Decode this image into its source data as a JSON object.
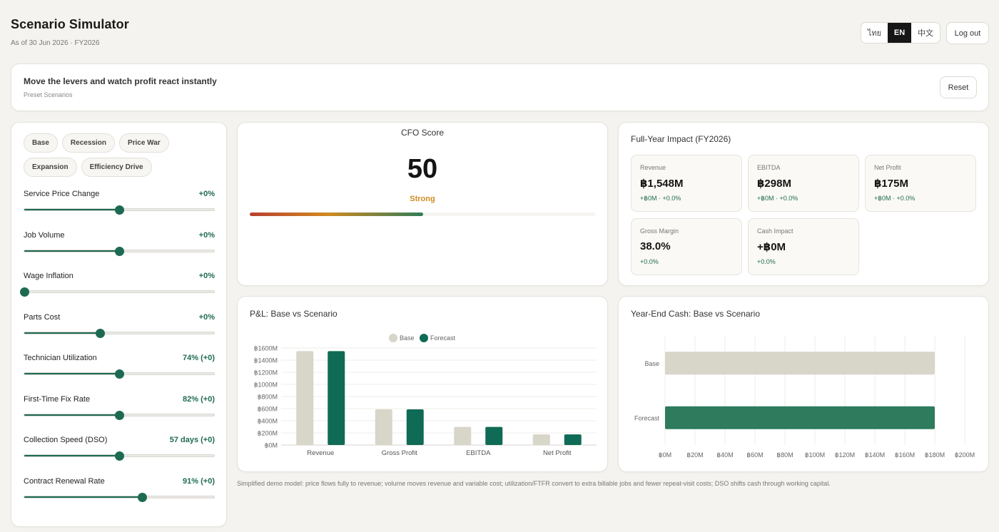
{
  "header": {
    "title": "Scenario Simulator",
    "subtitle": "As of 30 Jun 2026 · FY2026"
  },
  "lang": {
    "thai": "ไทย",
    "en": "EN",
    "zh": "中文",
    "active": "en"
  },
  "logout_label": "Log out",
  "banner": {
    "title": "Move the levers and watch profit react instantly",
    "subtitle": "Preset Scenarios",
    "reset_label": "Reset"
  },
  "presets": [
    "Base",
    "Recession",
    "Price War",
    "Expansion",
    "Efficiency Drive"
  ],
  "levers": [
    {
      "name": "Service Price Change",
      "value": "+0%",
      "position": 0.5
    },
    {
      "name": "Job Volume",
      "value": "+0%",
      "position": 0.5
    },
    {
      "name": "Wage Inflation",
      "value": "+0%",
      "position": 0.0
    },
    {
      "name": "Parts Cost",
      "value": "+0%",
      "position": 0.4
    },
    {
      "name": "Technician Utilization",
      "value": "74% (+0)",
      "position": 0.5
    },
    {
      "name": "First-Time Fix Rate",
      "value": "82% (+0)",
      "position": 0.5
    },
    {
      "name": "Collection Speed (DSO)",
      "value": "57 days (+0)",
      "position": 0.5
    },
    {
      "name": "Contract Renewal Rate",
      "value": "91% (+0)",
      "position": 0.62
    }
  ],
  "cfo": {
    "title": "CFO Score",
    "score": "50",
    "label": "Strong",
    "progress": 0.5
  },
  "impact": {
    "title": "Full-Year Impact (FY2026)",
    "kpis": [
      {
        "label": "Revenue",
        "value": "฿1,548M",
        "delta": "+฿0M · +0.0%"
      },
      {
        "label": "EBITDA",
        "value": "฿298M",
        "delta": "+฿0M · +0.0%"
      },
      {
        "label": "Net Profit",
        "value": "฿175M",
        "delta": "+฿0M · +0.0%"
      },
      {
        "label": "Gross Margin",
        "value": "38.0%",
        "delta": "+0.0%"
      },
      {
        "label": "Cash Impact",
        "value": "+฿0M",
        "delta": "+0.0%"
      }
    ]
  },
  "colors": {
    "base": "#d8d5c9",
    "forecast": "#0f6b56",
    "forecast_cash": "#2e7b5e",
    "accent": "#1f6b4f",
    "warn": "#d08a22"
  },
  "pl_chart": {
    "title": "P&L: Base vs Scenario",
    "chart_data": {
      "type": "bar",
      "categories": [
        "Revenue",
        "Gross Profit",
        "EBITDA",
        "Net Profit"
      ],
      "series": [
        {
          "name": "Base",
          "values": [
            1548,
            588,
            298,
            175
          ]
        },
        {
          "name": "Forecast",
          "values": [
            1548,
            588,
            298,
            175
          ]
        }
      ],
      "yticks": [
        "฿0M",
        "฿200M",
        "฿400M",
        "฿600M",
        "฿800M",
        "฿1000M",
        "฿1200M",
        "฿1400M",
        "฿1600M"
      ],
      "ylim": [
        0,
        1600
      ],
      "legend": "top-center"
    }
  },
  "cash_chart": {
    "title": "Year-End Cash: Base vs Scenario",
    "chart_data": {
      "type": "bar",
      "orientation": "horizontal",
      "categories": [
        "Base",
        "Forecast"
      ],
      "values": [
        180,
        180
      ],
      "xticks": [
        "฿0M",
        "฿20M",
        "฿40M",
        "฿60M",
        "฿80M",
        "฿100M",
        "฿120M",
        "฿140M",
        "฿160M",
        "฿180M",
        "฿200M"
      ],
      "xlim": [
        0,
        200
      ]
    }
  },
  "footnote": "Simplified demo model: price flows fully to revenue; volume moves revenue and variable cost; utilization/FTFR convert to extra billable jobs and fewer repeat-visit costs; DSO shifts cash through working capital."
}
